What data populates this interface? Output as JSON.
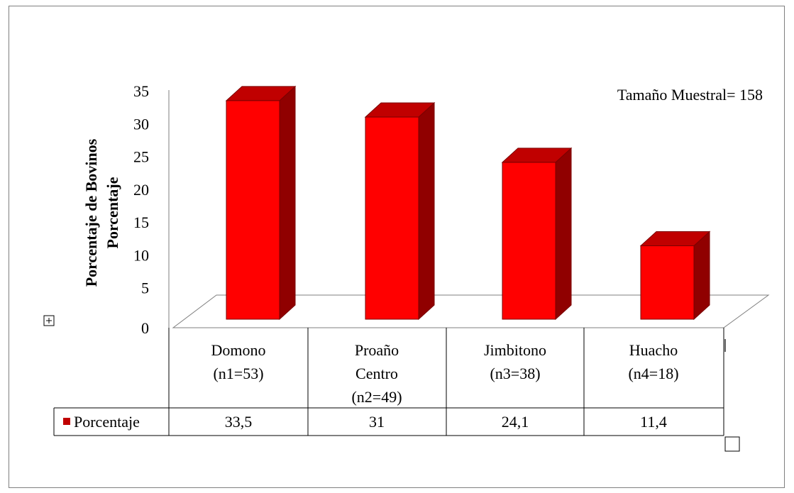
{
  "chart_data": {
    "type": "bar",
    "style": "3d-column-with-data-table",
    "ylabel_line1": "Porcentaje de Bovinos",
    "ylabel_line2": "Porcentaje",
    "annotation": "Tamaño Muestral= 158",
    "ylim": [
      0,
      35
    ],
    "yticks": [
      "0",
      "5",
      "10",
      "15",
      "20",
      "25",
      "30",
      "35"
    ],
    "categories": [
      [
        "Domono",
        "(n1=53)"
      ],
      [
        "Proaño",
        "Centro",
        "(n2=49)"
      ],
      [
        "Jimbitono",
        "(n3=38)"
      ],
      [
        "Huacho",
        "(n4=18)"
      ]
    ],
    "series": [
      {
        "name": "Porcentaje",
        "values": [
          33.5,
          31,
          24.1,
          11.4
        ],
        "value_labels": [
          "33,5",
          "31",
          "24,1",
          "11,4"
        ]
      }
    ],
    "grid": false,
    "colors": {
      "front": "#ff0000",
      "top": "#c00000",
      "side": "#900000",
      "edge": "#7a0000"
    }
  },
  "icons": {
    "move_handle": "move-handle-icon",
    "resize_handle": "resize-handle-icon"
  }
}
